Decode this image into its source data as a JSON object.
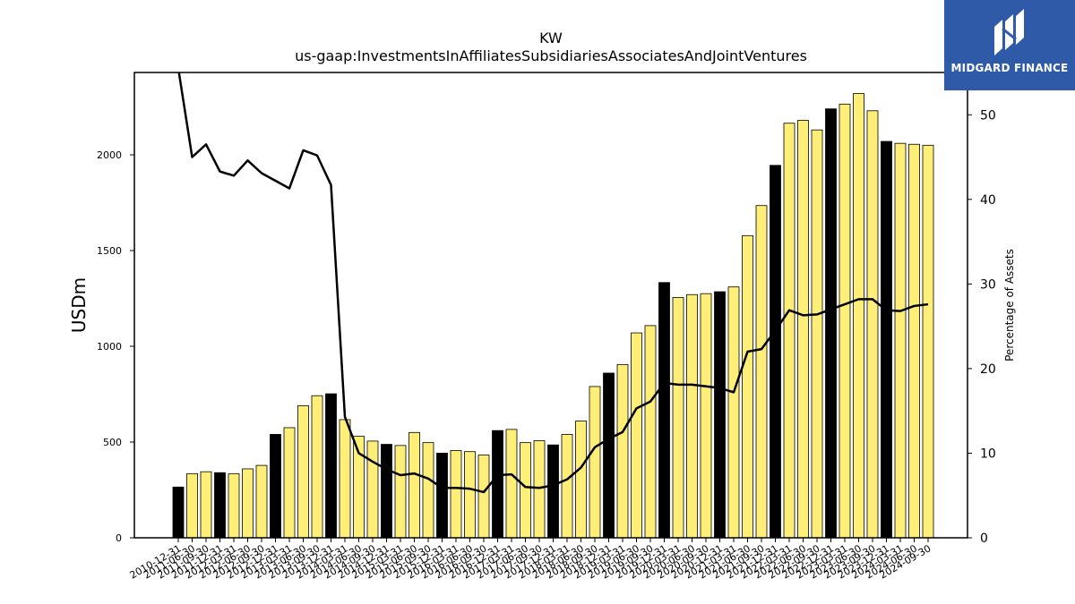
{
  "chart_data": {
    "type": "bar",
    "title": "KW",
    "subtitle": "us-gaap:InvestmentsInAffiliatesSubsidiariesAssociatesAndJointVentures",
    "ylabel": "USDm",
    "y2label": "Percentage of Assets",
    "ylim": [
      0,
      2430
    ],
    "y2lim": [
      0,
      55
    ],
    "yticks": [
      0,
      500,
      1000,
      1500,
      2000
    ],
    "y2ticks": [
      0,
      10,
      20,
      30,
      40,
      50
    ],
    "grid": false,
    "colors": {
      "bar": "#ffee77",
      "bar_highlight": "#000000",
      "line": "#000000"
    },
    "categories": [
      "2010-12-31",
      "2011-06-30",
      "2011-09-30",
      "2011-12-31",
      "2012-03-31",
      "2012-06-30",
      "2012-09-30",
      "2012-12-31",
      "2013-03-31",
      "2013-06-30",
      "2013-09-30",
      "2013-12-31",
      "2014-03-31",
      "2014-06-30",
      "2014-09-30",
      "2014-12-31",
      "2015-03-31",
      "2015-06-30",
      "2015-09-30",
      "2015-12-31",
      "2016-03-31",
      "2016-06-30",
      "2016-09-30",
      "2016-12-31",
      "2017-03-31",
      "2017-06-30",
      "2017-09-30",
      "2017-12-31",
      "2018-03-31",
      "2018-06-30",
      "2018-09-30",
      "2018-12-31",
      "2019-03-31",
      "2019-06-30",
      "2019-09-30",
      "2019-12-31",
      "2020-03-31",
      "2020-06-30",
      "2020-09-30",
      "2020-12-31",
      "2021-03-31",
      "2021-06-30",
      "2021-09-30",
      "2021-12-31",
      "2022-03-31",
      "2022-06-30",
      "2022-09-30",
      "2022-12-31",
      "2023-03-31",
      "2023-06-30",
      "2023-09-30",
      "2023-12-31",
      "2024-03-31",
      "2024-06-30",
      "2024-09-30"
    ],
    "highlight": [
      true,
      false,
      false,
      true,
      false,
      false,
      false,
      true,
      false,
      false,
      false,
      true,
      false,
      false,
      false,
      true,
      false,
      false,
      false,
      true,
      false,
      false,
      false,
      true,
      false,
      false,
      false,
      true,
      false,
      false,
      false,
      true,
      false,
      false,
      false,
      true,
      false,
      false,
      false,
      true,
      false,
      false,
      false,
      true,
      false,
      false,
      false,
      true,
      false,
      false,
      false,
      true,
      false,
      false,
      false
    ],
    "series": [
      {
        "type": "bar",
        "axis": "left",
        "values": [
          265,
          335,
          345,
          340,
          335,
          360,
          378,
          540,
          575,
          690,
          742,
          752,
          617,
          530,
          505,
          488,
          482,
          550,
          497,
          442,
          456,
          450,
          432,
          560,
          566,
          497,
          507,
          485,
          540,
          610,
          790,
          860,
          905,
          1070,
          1108,
          1333,
          1255,
          1270,
          1275,
          1285,
          1310,
          1578,
          1735,
          1945,
          2165,
          2180,
          2130,
          2240,
          2265,
          2320,
          2230,
          2070,
          2060,
          2055,
          2050
        ]
      },
      {
        "type": "line",
        "axis": "right",
        "values": [
          55.5,
          45.0,
          46.5,
          43.3,
          42.8,
          44.6,
          43.1,
          42.2,
          41.3,
          45.8,
          45.2,
          41.7,
          14.3,
          10.0,
          9.0,
          8.1,
          7.4,
          7.6,
          7.0,
          5.9,
          5.9,
          5.8,
          5.4,
          7.4,
          7.5,
          6.0,
          5.9,
          6.2,
          6.9,
          8.3,
          10.7,
          11.7,
          12.5,
          15.3,
          16.1,
          18.3,
          18.1,
          18.1,
          17.9,
          17.7,
          17.2,
          22.0,
          22.3,
          24.5,
          26.9,
          26.3,
          26.4,
          27.0,
          27.6,
          28.2,
          28.2,
          26.9,
          26.8,
          27.4,
          27.6
        ]
      }
    ]
  },
  "logo": {
    "text": "MIDGARD FINANCE"
  }
}
